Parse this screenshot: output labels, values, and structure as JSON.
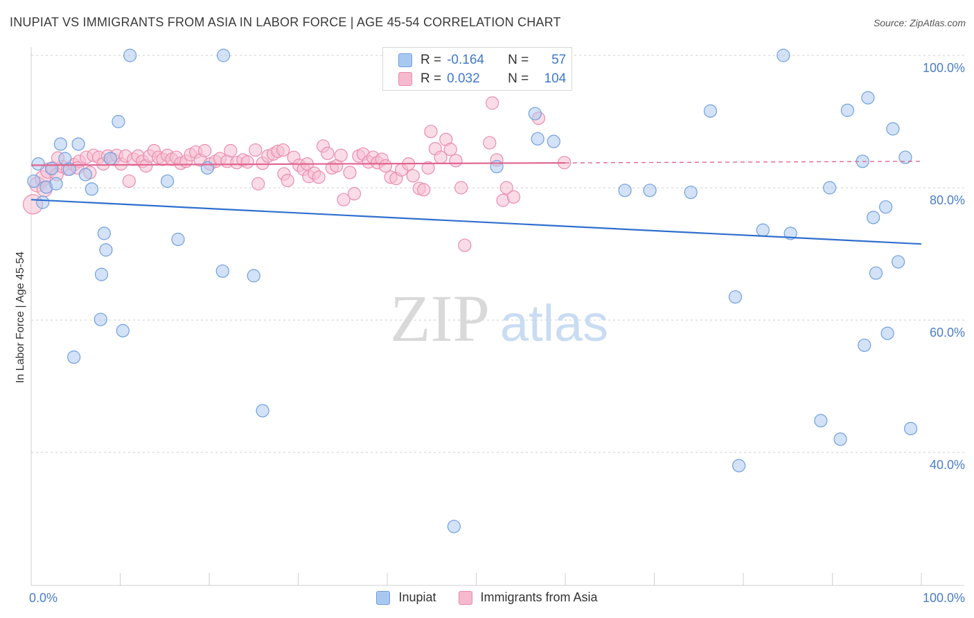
{
  "title": "INUPIAT VS IMMIGRANTS FROM ASIA IN LABOR FORCE | AGE 45-54 CORRELATION CHART",
  "source": "Source: ZipAtlas.com",
  "watermark": {
    "zip": "ZIP",
    "atlas": "atlas"
  },
  "legend_top": [
    {
      "r_label": "R =",
      "r_value": "-0.164",
      "n_label": "N =",
      "n_value": "57",
      "fill": "#a9c8f0",
      "stroke": "#6d9ee0"
    },
    {
      "r_label": "R =",
      "r_value": "0.032",
      "n_label": "N =",
      "n_value": "104",
      "fill": "#f7b9cd",
      "stroke": "#e98aa8"
    }
  ],
  "colors": {
    "blue_fill": "#aecbef",
    "blue_stroke": "#6f9fdf",
    "blue_line": "#2f6fce",
    "pink_fill": "#f6bfd1",
    "pink_stroke": "#e98cab",
    "pink_line": "#e0658f",
    "axis_text": "#4a7dc8",
    "grid": "#cccccc"
  },
  "chart_data": {
    "type": "scatter",
    "title": "INUPIAT VS IMMIGRANTS FROM ASIA IN LABOR FORCE | AGE 45-54 CORRELATION CHART",
    "xlabel": "",
    "ylabel": "In Labor Force | Age 45-54",
    "xlim": [
      0,
      100
    ],
    "ylim": [
      20,
      102
    ],
    "x_tick_labels": [
      "0.0%",
      "100.0%"
    ],
    "y_ticks": [
      40,
      60,
      80,
      100
    ],
    "y_tick_labels": [
      "40.0%",
      "60.0%",
      "80.0%",
      "100.0%"
    ],
    "series": [
      {
        "name": "Inupiat",
        "r": -0.164,
        "n": 57,
        "trend": {
          "x": [
            0,
            100
          ],
          "y": [
            78.2,
            71.5
          ],
          "dashed_from": null
        },
        "points": [
          {
            "x": 0.8,
            "y": 83.6
          },
          {
            "x": 1.3,
            "y": 77.8
          },
          {
            "x": 1.7,
            "y": 80.1
          },
          {
            "x": 2.3,
            "y": 82.9
          },
          {
            "x": 2.8,
            "y": 80.6
          },
          {
            "x": 3.3,
            "y": 86.6
          },
          {
            "x": 3.8,
            "y": 84.4
          },
          {
            "x": 4.3,
            "y": 82.8
          },
          {
            "x": 4.8,
            "y": 54.4
          },
          {
            "x": 5.3,
            "y": 86.6
          },
          {
            "x": 6.1,
            "y": 82.0
          },
          {
            "x": 6.8,
            "y": 79.8
          },
          {
            "x": 7.8,
            "y": 60.1
          },
          {
            "x": 7.9,
            "y": 66.9
          },
          {
            "x": 8.2,
            "y": 73.1
          },
          {
            "x": 8.4,
            "y": 70.6
          },
          {
            "x": 8.9,
            "y": 84.4
          },
          {
            "x": 9.8,
            "y": 90.0
          },
          {
            "x": 10.3,
            "y": 58.4
          },
          {
            "x": 11.1,
            "y": 100.0
          },
          {
            "x": 15.3,
            "y": 81.0
          },
          {
            "x": 16.5,
            "y": 72.2
          },
          {
            "x": 19.8,
            "y": 83.0
          },
          {
            "x": 21.6,
            "y": 100.0
          },
          {
            "x": 21.5,
            "y": 67.4
          },
          {
            "x": 25.0,
            "y": 66.7
          },
          {
            "x": 26.0,
            "y": 46.3
          },
          {
            "x": 47.5,
            "y": 28.8
          },
          {
            "x": 52.3,
            "y": 83.2
          },
          {
            "x": 56.6,
            "y": 91.2
          },
          {
            "x": 56.9,
            "y": 87.4
          },
          {
            "x": 58.7,
            "y": 87.0
          },
          {
            "x": 66.7,
            "y": 79.6
          },
          {
            "x": 69.5,
            "y": 79.6
          },
          {
            "x": 74.1,
            "y": 79.3
          },
          {
            "x": 76.3,
            "y": 91.6
          },
          {
            "x": 79.1,
            "y": 63.5
          },
          {
            "x": 79.5,
            "y": 38.0
          },
          {
            "x": 82.2,
            "y": 73.6
          },
          {
            "x": 84.5,
            "y": 100.0
          },
          {
            "x": 85.3,
            "y": 73.1
          },
          {
            "x": 88.7,
            "y": 44.8
          },
          {
            "x": 89.7,
            "y": 80.0
          },
          {
            "x": 90.9,
            "y": 42.0
          },
          {
            "x": 91.7,
            "y": 91.7
          },
          {
            "x": 93.4,
            "y": 84.0
          },
          {
            "x": 93.6,
            "y": 56.2
          },
          {
            "x": 94.0,
            "y": 93.6
          },
          {
            "x": 94.6,
            "y": 75.5
          },
          {
            "x": 94.9,
            "y": 67.1
          },
          {
            "x": 96.0,
            "y": 77.1
          },
          {
            "x": 96.2,
            "y": 58.0
          },
          {
            "x": 96.8,
            "y": 88.9
          },
          {
            "x": 97.4,
            "y": 68.8
          },
          {
            "x": 98.2,
            "y": 84.6
          },
          {
            "x": 98.8,
            "y": 43.6
          },
          {
            "x": 0.3,
            "y": 81.0
          }
        ]
      },
      {
        "name": "Immigrants from Asia",
        "r": 0.032,
        "n": 104,
        "trend": {
          "x": [
            0,
            100
          ],
          "y": [
            83.4,
            84.0
          ],
          "dashed_from": 60
        },
        "points": [
          {
            "x": 0.2,
            "y": 77.5
          },
          {
            "x": 0.7,
            "y": 80.5
          },
          {
            "x": 1.3,
            "y": 81.4
          },
          {
            "x": 1.9,
            "y": 82.6
          },
          {
            "x": 2.4,
            "y": 83.0
          },
          {
            "x": 2.9,
            "y": 82.0
          },
          {
            "x": 3.5,
            "y": 83.2
          },
          {
            "x": 4.1,
            "y": 82.8
          },
          {
            "x": 4.8,
            "y": 83.5
          },
          {
            "x": 5.4,
            "y": 84.0
          },
          {
            "x": 6.2,
            "y": 84.6
          },
          {
            "x": 6.6,
            "y": 82.3
          },
          {
            "x": 7.0,
            "y": 84.9
          },
          {
            "x": 7.6,
            "y": 84.6
          },
          {
            "x": 8.1,
            "y": 83.6
          },
          {
            "x": 8.6,
            "y": 84.8
          },
          {
            "x": 9.2,
            "y": 84.3
          },
          {
            "x": 9.6,
            "y": 84.9
          },
          {
            "x": 10.1,
            "y": 83.6
          },
          {
            "x": 10.6,
            "y": 84.8
          },
          {
            "x": 11.0,
            "y": 81.0
          },
          {
            "x": 11.5,
            "y": 84.3
          },
          {
            "x": 12.0,
            "y": 84.8
          },
          {
            "x": 12.5,
            "y": 84.0
          },
          {
            "x": 12.9,
            "y": 83.3
          },
          {
            "x": 13.3,
            "y": 84.8
          },
          {
            "x": 13.8,
            "y": 85.6
          },
          {
            "x": 14.3,
            "y": 84.6
          },
          {
            "x": 14.8,
            "y": 84.3
          },
          {
            "x": 15.3,
            "y": 84.9
          },
          {
            "x": 15.8,
            "y": 84.3
          },
          {
            "x": 16.3,
            "y": 84.6
          },
          {
            "x": 16.8,
            "y": 83.7
          },
          {
            "x": 17.4,
            "y": 84.0
          },
          {
            "x": 17.9,
            "y": 85.0
          },
          {
            "x": 18.5,
            "y": 85.4
          },
          {
            "x": 19.0,
            "y": 84.2
          },
          {
            "x": 19.5,
            "y": 85.6
          },
          {
            "x": 20.1,
            "y": 83.6
          },
          {
            "x": 20.7,
            "y": 84.0
          },
          {
            "x": 21.2,
            "y": 84.4
          },
          {
            "x": 22.0,
            "y": 84.0
          },
          {
            "x": 22.4,
            "y": 85.6
          },
          {
            "x": 23.1,
            "y": 83.8
          },
          {
            "x": 23.8,
            "y": 84.2
          },
          {
            "x": 24.3,
            "y": 83.9
          },
          {
            "x": 25.2,
            "y": 85.7
          },
          {
            "x": 25.5,
            "y": 80.6
          },
          {
            "x": 26.0,
            "y": 83.7
          },
          {
            "x": 26.6,
            "y": 84.8
          },
          {
            "x": 27.2,
            "y": 85.1
          },
          {
            "x": 27.7,
            "y": 85.5
          },
          {
            "x": 28.3,
            "y": 85.7
          },
          {
            "x": 28.4,
            "y": 82.1
          },
          {
            "x": 28.8,
            "y": 81.1
          },
          {
            "x": 29.5,
            "y": 84.6
          },
          {
            "x": 30.1,
            "y": 83.4
          },
          {
            "x": 30.6,
            "y": 82.8
          },
          {
            "x": 31.0,
            "y": 83.6
          },
          {
            "x": 31.2,
            "y": 81.7
          },
          {
            "x": 31.8,
            "y": 82.2
          },
          {
            "x": 32.3,
            "y": 81.6
          },
          {
            "x": 32.8,
            "y": 86.3
          },
          {
            "x": 33.3,
            "y": 85.2
          },
          {
            "x": 33.8,
            "y": 83.0
          },
          {
            "x": 34.3,
            "y": 83.3
          },
          {
            "x": 34.8,
            "y": 84.9
          },
          {
            "x": 35.1,
            "y": 78.2
          },
          {
            "x": 35.8,
            "y": 82.3
          },
          {
            "x": 36.3,
            "y": 79.1
          },
          {
            "x": 36.8,
            "y": 84.8
          },
          {
            "x": 37.3,
            "y": 85.1
          },
          {
            "x": 37.9,
            "y": 83.9
          },
          {
            "x": 38.4,
            "y": 84.6
          },
          {
            "x": 38.9,
            "y": 83.8
          },
          {
            "x": 39.4,
            "y": 84.3
          },
          {
            "x": 39.8,
            "y": 83.3
          },
          {
            "x": 40.4,
            "y": 81.6
          },
          {
            "x": 41.0,
            "y": 81.4
          },
          {
            "x": 41.6,
            "y": 82.7
          },
          {
            "x": 42.4,
            "y": 83.6
          },
          {
            "x": 42.9,
            "y": 81.8
          },
          {
            "x": 43.6,
            "y": 79.9
          },
          {
            "x": 44.1,
            "y": 79.7
          },
          {
            "x": 44.6,
            "y": 83.0
          },
          {
            "x": 44.9,
            "y": 88.5
          },
          {
            "x": 45.4,
            "y": 85.9
          },
          {
            "x": 46.0,
            "y": 84.6
          },
          {
            "x": 46.6,
            "y": 87.3
          },
          {
            "x": 47.1,
            "y": 85.8
          },
          {
            "x": 47.7,
            "y": 84.1
          },
          {
            "x": 48.3,
            "y": 80.0
          },
          {
            "x": 48.7,
            "y": 71.3
          },
          {
            "x": 51.5,
            "y": 86.8
          },
          {
            "x": 51.8,
            "y": 92.8
          },
          {
            "x": 52.3,
            "y": 84.2
          },
          {
            "x": 53.0,
            "y": 78.1
          },
          {
            "x": 53.4,
            "y": 80.0
          },
          {
            "x": 54.2,
            "y": 78.6
          },
          {
            "x": 57.0,
            "y": 90.5
          },
          {
            "x": 59.9,
            "y": 83.8
          },
          {
            "x": 5.2,
            "y": 83.0
          },
          {
            "x": 3.0,
            "y": 84.5
          },
          {
            "x": 1.5,
            "y": 79.8
          }
        ]
      }
    ]
  },
  "legend_bottom": [
    {
      "label": "Inupiat"
    },
    {
      "label": "Immigrants from Asia"
    }
  ]
}
